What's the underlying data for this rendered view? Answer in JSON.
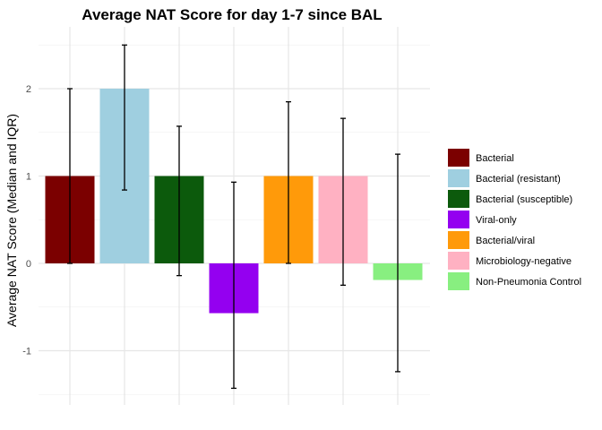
{
  "chart_data": {
    "type": "bar",
    "title": "Average NAT Score for day 1-7 since BAL",
    "xlabel": "",
    "ylabel": "Average NAT Score (Median and IQR)",
    "ylim": [
      -1.6,
      2.6
    ],
    "yticks": [
      -1,
      0,
      1,
      2
    ],
    "grid": true,
    "legend_position": "right",
    "categories": [
      "Bacterial",
      "Bacterial (resistant)",
      "Bacterial (susceptible)",
      "Viral-only",
      "Bacterial/viral",
      "Microbiology-negative",
      "Non-Pneumonia Control"
    ],
    "values": [
      1,
      2,
      1,
      -0.57,
      1,
      1,
      -0.19
    ],
    "error_low": [
      0,
      0.84,
      -0.14,
      -1.43,
      0,
      -0.25,
      -1.24
    ],
    "error_high": [
      2,
      2.5,
      1.57,
      0.93,
      1.85,
      1.66,
      1.25
    ],
    "colors": [
      "#7b0000",
      "#9fcfe0",
      "#0c5a0c",
      "#9400f0",
      "#ff9a0a",
      "#ffb1c2",
      "#88ef80"
    ]
  }
}
